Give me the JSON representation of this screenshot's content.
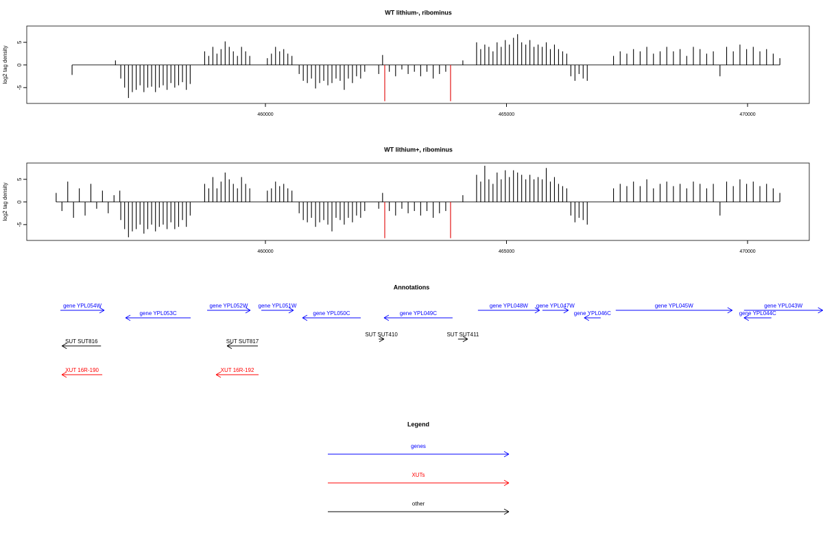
{
  "chart_data": [
    {
      "type": "bar",
      "title": "WT lithium-, ribominus",
      "y_label": "log2 tag density",
      "xlim": [
        455050,
        471280
      ],
      "ylim": [
        -8.5,
        8.6
      ],
      "xticks": [
        460000,
        465000,
        470000
      ],
      "yticks": [
        -5,
        0,
        5
      ],
      "series": [
        {
          "color": "#000000",
          "x": [
            455990,
            456890,
            457000,
            457080,
            457160,
            457240,
            457320,
            457400,
            457480,
            457560,
            457640,
            457720,
            457800,
            457880,
            457960,
            458040,
            458120,
            458200,
            458280,
            458360,
            458440,
            458740,
            458825,
            458910,
            458995,
            459080,
            459165,
            459250,
            459335,
            459420,
            459505,
            459590,
            459675,
            460040,
            460125,
            460210,
            460295,
            460380,
            460465,
            460550,
            460700,
            460785,
            460870,
            460955,
            461040,
            461125,
            461210,
            461295,
            461380,
            461465,
            461550,
            461635,
            461720,
            461805,
            461890,
            461975,
            462060,
            462350,
            462430,
            462570,
            462700,
            462830,
            462960,
            463090,
            463220,
            463350,
            463480,
            463610,
            463740,
            464095,
            464380,
            464465,
            464550,
            464635,
            464720,
            464805,
            464890,
            464975,
            465060,
            465145,
            465230,
            465315,
            465400,
            465485,
            465570,
            465655,
            465740,
            465825,
            465910,
            465995,
            466080,
            466165,
            466250,
            466335,
            466420,
            466505,
            466590,
            466675,
            467220,
            467358,
            467496,
            467634,
            467772,
            467910,
            468048,
            468186,
            468324,
            468462,
            468600,
            468738,
            468876,
            469014,
            469152,
            469290,
            469428,
            469566,
            469704,
            469842,
            469980,
            470118,
            470256,
            470394,
            470532,
            470670
          ],
          "values": [
            -2.2,
            1,
            -3,
            -5,
            -7.3,
            -6,
            -5.5,
            -4.5,
            -6,
            -5,
            -4.8,
            -6,
            -5,
            -4.5,
            -5.5,
            -4,
            -5,
            -4.5,
            -3.8,
            -5.5,
            -4.2,
            3,
            2,
            4,
            2.5,
            3.5,
            5.2,
            4,
            3,
            2,
            4,
            3,
            2,
            1.5,
            2.5,
            4,
            3,
            3.5,
            2.5,
            2,
            -2,
            -3.5,
            -4,
            -3,
            -5.2,
            -4,
            -3.5,
            -4.5,
            -4,
            -3,
            -3.5,
            -5.5,
            -3,
            -4,
            -2.5,
            -3,
            -1.5,
            -2,
            2.2,
            -1.5,
            -2.5,
            -1,
            -2,
            -1.5,
            -2.5,
            -1.5,
            -3,
            -2,
            -1.5,
            1,
            5,
            3.5,
            4.5,
            4,
            3,
            5,
            4,
            5.5,
            4.5,
            6,
            6.8,
            5,
            4.5,
            5.5,
            4,
            4.5,
            4,
            5,
            3.5,
            4.5,
            3.5,
            3,
            2.5,
            -2.5,
            -3.5,
            -2,
            -3,
            -3.5,
            2,
            3,
            2.5,
            3.5,
            3,
            4,
            2.5,
            3,
            4,
            3,
            3.5,
            2,
            4,
            3.5,
            2.5,
            3,
            -2.5,
            4,
            3,
            4.5,
            3.5,
            4,
            3,
            3.5,
            2.5,
            1.5
          ]
        },
        {
          "color": "#e00000",
          "x": [
            462475,
            463840
          ],
          "values": [
            -8,
            -8
          ]
        }
      ]
    },
    {
      "type": "bar",
      "title": "WT lithium+, ribominus",
      "y_label": "log2 tag density",
      "xlim": [
        455050,
        471280
      ],
      "ylim": [
        -8.5,
        8.6
      ],
      "xticks": [
        460000,
        465000,
        470000
      ],
      "yticks": [
        -5,
        0,
        5
      ],
      "series": [
        {
          "color": "#000000",
          "x": [
            455660,
            455780,
            455900,
            456020,
            456140,
            456260,
            456380,
            456500,
            456620,
            456740,
            456860,
            456980,
            457000,
            457080,
            457160,
            457240,
            457320,
            457400,
            457480,
            457560,
            457640,
            457720,
            457800,
            457880,
            457960,
            458040,
            458120,
            458200,
            458280,
            458360,
            458440,
            458740,
            458825,
            458910,
            458995,
            459080,
            459165,
            459250,
            459335,
            459420,
            459505,
            459590,
            459675,
            460040,
            460125,
            460210,
            460295,
            460380,
            460465,
            460550,
            460700,
            460785,
            460870,
            460955,
            461040,
            461125,
            461210,
            461295,
            461380,
            461465,
            461550,
            461635,
            461720,
            461805,
            461890,
            461975,
            462060,
            462350,
            462430,
            462570,
            462700,
            462830,
            462960,
            463090,
            463220,
            463350,
            463480,
            463610,
            463740,
            464095,
            464380,
            464465,
            464550,
            464635,
            464720,
            464805,
            464890,
            464975,
            465060,
            465145,
            465230,
            465315,
            465400,
            465485,
            465570,
            465655,
            465740,
            465825,
            465910,
            465995,
            466080,
            466165,
            466250,
            466335,
            466420,
            466505,
            466590,
            466675,
            467220,
            467358,
            467496,
            467634,
            467772,
            467910,
            468048,
            468186,
            468324,
            468462,
            468600,
            468738,
            468876,
            469014,
            469152,
            469290,
            469428,
            469566,
            469704,
            469842,
            469980,
            470118,
            470256,
            470394,
            470532,
            470670
          ],
          "values": [
            2,
            -2,
            4.5,
            -3.5,
            3,
            -3,
            4,
            -1.5,
            2.5,
            -2.5,
            1.5,
            2.5,
            -4,
            -6,
            -7.8,
            -6.5,
            -6,
            -5,
            -7,
            -6,
            -5,
            -6.5,
            -5.5,
            -5,
            -6,
            -4.5,
            -6,
            -5.5,
            -4,
            -5.5,
            -3,
            4,
            3,
            5.5,
            3,
            4.5,
            6.5,
            5,
            4,
            3,
            5.5,
            4,
            3,
            2.5,
            3,
            4.5,
            3.5,
            4,
            3,
            2.5,
            -2.5,
            -4,
            -4.5,
            -3.5,
            -5.5,
            -4.5,
            -4,
            -5,
            -6.5,
            -3.5,
            -4,
            -5,
            -3.5,
            -4.5,
            -3,
            -3.5,
            -2,
            -1.5,
            2,
            -2,
            -3,
            -1.5,
            -2.5,
            -2,
            -3,
            -2,
            -3.5,
            -2.5,
            -2,
            1.5,
            6,
            4.5,
            8,
            5,
            4,
            6.5,
            5,
            7,
            5.5,
            7,
            6.5,
            6,
            5,
            6,
            5,
            5.5,
            5,
            7.5,
            4.5,
            5.5,
            4,
            3.5,
            3,
            -3,
            -4.5,
            -3.5,
            -4,
            -5,
            3,
            4,
            3.5,
            4.5,
            3.5,
            5,
            3,
            4,
            4.5,
            3.5,
            4,
            3,
            4.5,
            4,
            3,
            4,
            -3,
            4.5,
            3.5,
            5,
            4,
            4.5,
            3.5,
            4,
            3,
            2
          ]
        },
        {
          "color": "#e00000",
          "x": [
            462475,
            463840
          ],
          "values": [
            -8,
            -8
          ]
        }
      ]
    }
  ],
  "annotations": {
    "title": "Annotations",
    "tracks": [
      {
        "color": "#0000ff",
        "features": [
          {
            "label": "gene YPL054W",
            "start": 455748,
            "end": 456658
          },
          {
            "label": "gene YPL053C",
            "start": 458450,
            "end": 457099
          },
          {
            "label": "gene YPL052W",
            "start": 458791,
            "end": 459687
          },
          {
            "label": "gene YPL051W",
            "start": 459915,
            "end": 460583
          },
          {
            "label": "gene YPL050C",
            "start": 461977,
            "end": 460768
          },
          {
            "label": "gene YPL049C",
            "start": 463882,
            "end": 462460
          },
          {
            "label": "gene YPL048W",
            "start": 464408,
            "end": 465688
          },
          {
            "label": "gene YPL047W",
            "start": 465745,
            "end": 466285
          },
          {
            "label": "gene YPL046C",
            "start": 466954,
            "end": 466612
          },
          {
            "label": "gene YPL045W",
            "start": 467266,
            "end": 469684
          },
          {
            "label": "gene YPL044C",
            "start": 470494,
            "end": 469926
          },
          {
            "label": "gene YPL043W",
            "start": 469926,
            "end": 471560
          }
        ]
      },
      {
        "color": "#000000",
        "features": [
          {
            "label": "SUT SUT816",
            "start": 456590,
            "end": 455780
          },
          {
            "label": "SUT SUT817",
            "start": 459844,
            "end": 459204
          },
          {
            "label": "SUT SUT410",
            "start": 462350,
            "end": 462460
          },
          {
            "label": "SUT SUT411",
            "start": 463995,
            "end": 464195
          }
        ]
      },
      {
        "color": "#ff0000",
        "features": [
          {
            "label": "XUT 16R-190",
            "start": 456616,
            "end": 455777
          },
          {
            "label": "XUT 16R-192",
            "start": 459858,
            "end": 458976
          }
        ]
      }
    ]
  },
  "legend": {
    "title": "Legend",
    "items": [
      {
        "label": "genes",
        "color": "#0000ff"
      },
      {
        "label": "XUTs",
        "color": "#ff0000"
      },
      {
        "label": "other",
        "color": "#000000"
      }
    ]
  }
}
